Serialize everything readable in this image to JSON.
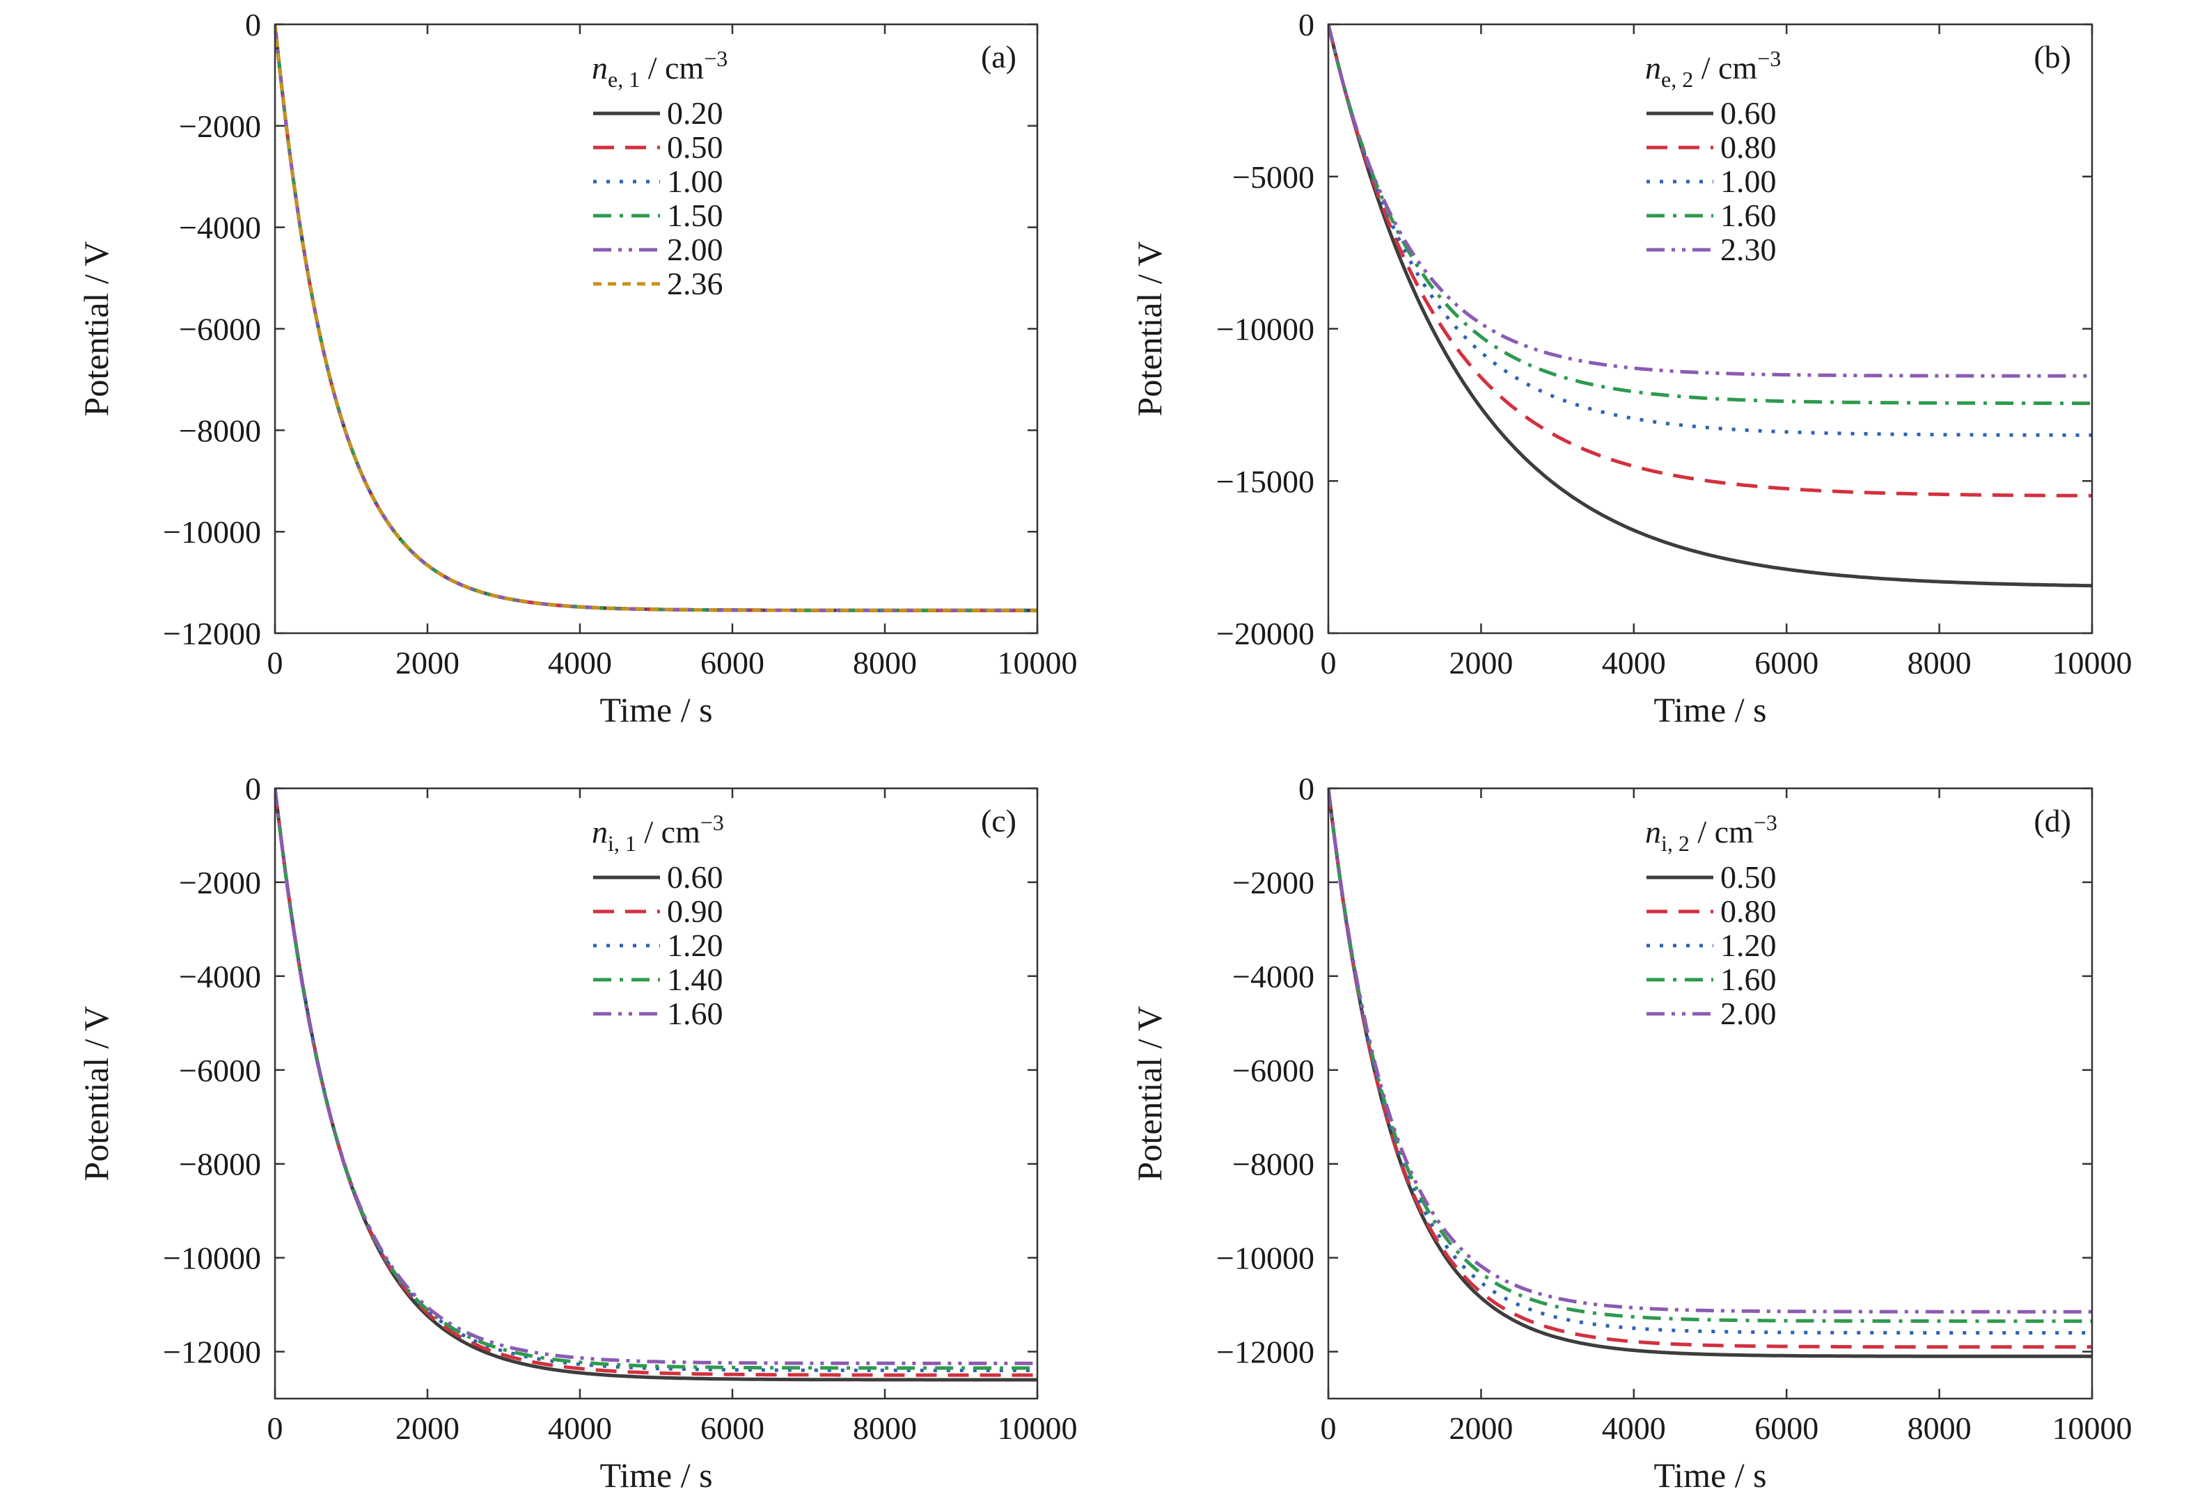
{
  "colors": {
    "series": [
      "#3d3d3d",
      "#d2313f",
      "#2e63b4",
      "#2e9a4e",
      "#8b5bb1",
      "#c7921c"
    ],
    "frame": "#333333",
    "text": "#1a1a1a"
  },
  "chart_data": [
    {
      "type": "line",
      "panel": "(a)",
      "title": "",
      "xlabel": "Time / s",
      "ylabel": "Potential / V",
      "xlim": [
        0,
        10000
      ],
      "ylim": [
        -12000,
        0
      ],
      "xticks": [
        0,
        2000,
        4000,
        6000,
        8000,
        10000
      ],
      "yticks": [
        0,
        -2000,
        -4000,
        -6000,
        -8000,
        -10000,
        -12000
      ],
      "grid": false,
      "legend_position": "top-center",
      "legend_title": {
        "var": "n",
        "sub": "e, 1",
        "rest": " / cm",
        "sup": "−3"
      },
      "series": [
        {
          "name": "0.20",
          "style": "solid",
          "asymptote": -11550,
          "tau": 780
        },
        {
          "name": "0.50",
          "style": "dash",
          "asymptote": -11550,
          "tau": 780
        },
        {
          "name": "1.00",
          "style": "dot",
          "asymptote": -11550,
          "tau": 780
        },
        {
          "name": "1.50",
          "style": "dashdot",
          "asymptote": -11550,
          "tau": 780
        },
        {
          "name": "2.00",
          "style": "dashdotdot",
          "asymptote": -11550,
          "tau": 780
        },
        {
          "name": "2.36",
          "style": "shortdash",
          "asymptote": -11550,
          "tau": 780
        }
      ]
    },
    {
      "type": "line",
      "panel": "(b)",
      "title": "",
      "xlabel": "Time / s",
      "ylabel": "Potential / V",
      "xlim": [
        0,
        10000
      ],
      "ylim": [
        -20000,
        0
      ],
      "xticks": [
        0,
        2000,
        4000,
        6000,
        8000,
        10000
      ],
      "yticks": [
        0,
        -5000,
        -10000,
        -15000,
        -20000
      ],
      "grid": false,
      "legend_position": "top-center",
      "legend_title": {
        "var": "n",
        "sub": "e, 2",
        "rest": " / cm",
        "sup": "−3"
      },
      "series": [
        {
          "name": "0.60",
          "style": "solid",
          "asymptote": -18500,
          "tau": 1750
        },
        {
          "name": "0.80",
          "style": "dash",
          "asymptote": -15500,
          "tau": 1450
        },
        {
          "name": "1.00",
          "style": "dot",
          "asymptote": -13500,
          "tau": 1250
        },
        {
          "name": "1.60",
          "style": "dashdot",
          "asymptote": -12450,
          "tau": 1150
        },
        {
          "name": "2.30",
          "style": "dashdotdot",
          "asymptote": -11550,
          "tau": 1050
        }
      ]
    },
    {
      "type": "line",
      "panel": "(c)",
      "title": "",
      "xlabel": "Time / s",
      "ylabel": "Potential / V",
      "xlim": [
        0,
        10000
      ],
      "ylim": [
        -13000,
        0
      ],
      "xticks": [
        0,
        2000,
        4000,
        6000,
        8000,
        10000
      ],
      "yticks": [
        0,
        -2000,
        -4000,
        -6000,
        -8000,
        -10000,
        -12000
      ],
      "grid": false,
      "legend_position": "top-center",
      "legend_title": {
        "var": "n",
        "sub": "i, 1",
        "rest": " / cm",
        "sup": "−3"
      },
      "series": [
        {
          "name": "0.60",
          "style": "solid",
          "asymptote": -12600,
          "tau": 900
        },
        {
          "name": "0.90",
          "style": "dash",
          "asymptote": -12500,
          "tau": 890
        },
        {
          "name": "1.20",
          "style": "dot",
          "asymptote": -12400,
          "tau": 880
        },
        {
          "name": "1.40",
          "style": "dashdot",
          "asymptote": -12350,
          "tau": 870
        },
        {
          "name": "1.60",
          "style": "dashdotdot",
          "asymptote": -12250,
          "tau": 860
        }
      ]
    },
    {
      "type": "line",
      "panel": "(d)",
      "title": "",
      "xlabel": "Time / s",
      "ylabel": "Potential / V",
      "xlim": [
        0,
        10000
      ],
      "ylim": [
        -13000,
        0
      ],
      "xticks": [
        0,
        2000,
        4000,
        6000,
        8000,
        10000
      ],
      "yticks": [
        0,
        -2000,
        -4000,
        -6000,
        -8000,
        -10000,
        -12000
      ],
      "grid": false,
      "legend_position": "top-center",
      "legend_title": {
        "var": "n",
        "sub": "i, 2",
        "rest": " / cm",
        "sup": "−3"
      },
      "series": [
        {
          "name": "0.50",
          "style": "solid",
          "asymptote": -12100,
          "tau": 880
        },
        {
          "name": "0.80",
          "style": "dash",
          "asymptote": -11900,
          "tau": 860
        },
        {
          "name": "1.20",
          "style": "dot",
          "asymptote": -11600,
          "tau": 840
        },
        {
          "name": "1.60",
          "style": "dashdot",
          "asymptote": -11350,
          "tau": 830
        },
        {
          "name": "2.00",
          "style": "dashdotdot",
          "asymptote": -11150,
          "tau": 820
        }
      ]
    }
  ]
}
